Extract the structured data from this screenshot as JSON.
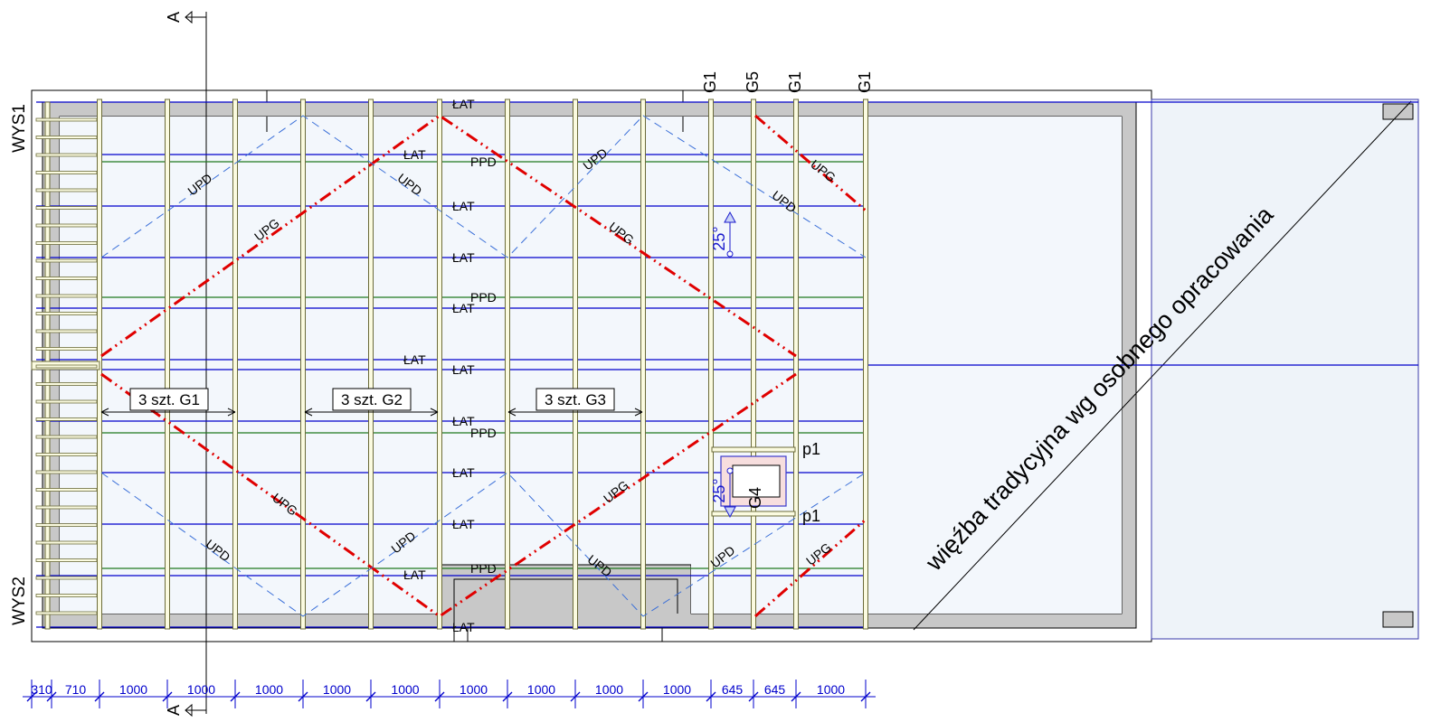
{
  "colors": {
    "background": "#ffffff",
    "wall": "#c8c8c8",
    "interior": "#f3f7fc",
    "outline": "#000000",
    "batten": "#0000cc",
    "ppd_line": "#1e7a1e",
    "rafter": "#6b6b3a",
    "rafter_fill": "#fbfbe0",
    "upg_line": "#e00000",
    "upd_line": "#3a6fd8",
    "dimension": "#0000cc",
    "slope": "#1a1acc",
    "skylight": "#f7dede"
  },
  "section": {
    "top": "A",
    "bottom": "A"
  },
  "walls": {
    "top": "WYS1",
    "bottom": "WYS2"
  },
  "gable_labels": [
    "G1",
    "G5",
    "G1",
    "G1"
  ],
  "lat_label": "ŁAT",
  "ppd_label": "PPD",
  "upg_label": "UPG",
  "upd_label": "UPD",
  "groups": [
    "3 szt. G1",
    "3 szt. G2",
    "3 szt. G3"
  ],
  "opening": {
    "frame": "G4",
    "beam_top": "p1",
    "beam_bottom": "p1"
  },
  "slope": "25°",
  "annex_note": "więźba tradycyjna wg osobnego opracowania",
  "dimensions": [
    "310",
    "710",
    "1000",
    "1000",
    "1000",
    "1000",
    "1000",
    "1000",
    "1000",
    "1000",
    "1000",
    "645",
    "645",
    "1000"
  ]
}
